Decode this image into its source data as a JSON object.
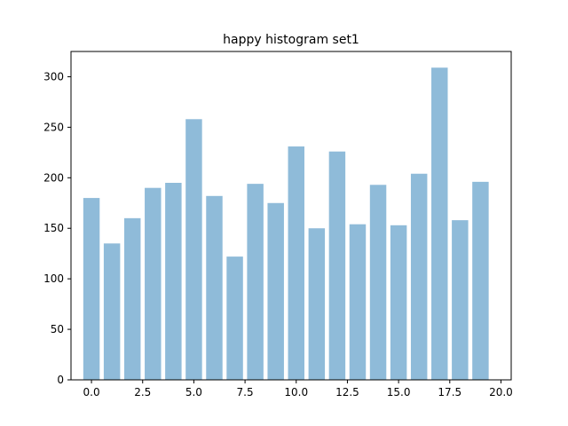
{
  "chart_data": {
    "type": "bar",
    "title": "happy histogram set1",
    "xlabel": "",
    "ylabel": "",
    "x": [
      0,
      1,
      2,
      3,
      4,
      5,
      6,
      7,
      8,
      9,
      10,
      11,
      12,
      13,
      14,
      15,
      16,
      17,
      18,
      19
    ],
    "values": [
      180,
      135,
      160,
      190,
      195,
      258,
      182,
      122,
      194,
      175,
      231,
      150,
      226,
      154,
      193,
      153,
      204,
      309,
      158,
      196
    ],
    "bar_color": "#1f77b4",
    "bar_opacity": 0.5,
    "xlim": [
      -1.0,
      20.5
    ],
    "ylim": [
      0,
      325
    ],
    "xticks": [
      0.0,
      2.5,
      5.0,
      7.5,
      10.0,
      12.5,
      15.0,
      17.5,
      20.0
    ],
    "xtick_labels": [
      "0.0",
      "2.5",
      "5.0",
      "7.5",
      "10.0",
      "12.5",
      "15.0",
      "17.5",
      "20.0"
    ],
    "yticks": [
      0,
      50,
      100,
      150,
      200,
      250,
      300
    ],
    "ytick_labels": [
      "0",
      "50",
      "100",
      "150",
      "200",
      "250",
      "300"
    ],
    "grid": false,
    "legend": false
  }
}
